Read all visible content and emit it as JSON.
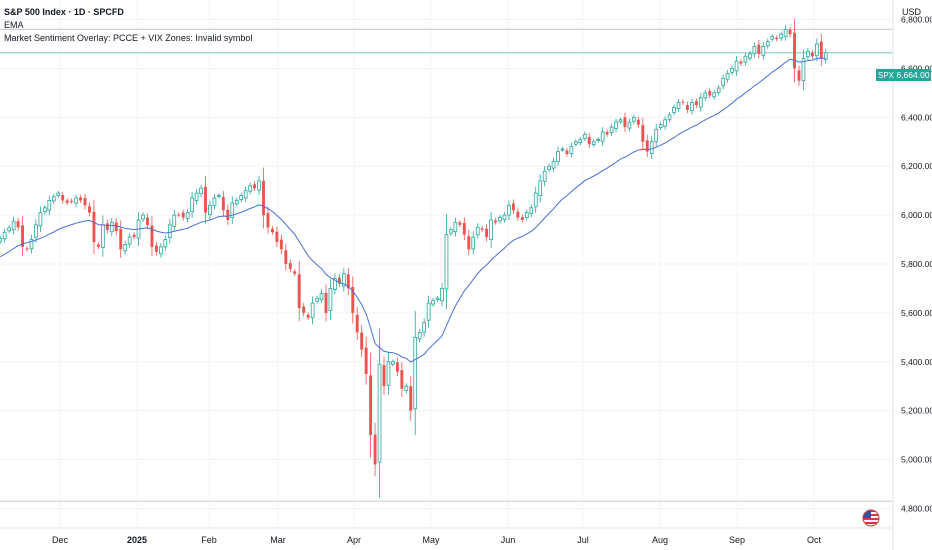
{
  "header": {
    "title": "S&P 500 Index · 1D · SPCFD",
    "indicator_1": "EMA",
    "indicator_2": "Market Sentiment Overlay: PCCE + VIX Zones: Invalid symbol",
    "currency": "USD"
  },
  "price_label": {
    "symbol": "SPX",
    "value": "6,664.00"
  },
  "colors": {
    "up": "#26a69a",
    "down": "#ef5350",
    "ema": "#4a6fd4",
    "grid": "#f0f3fa",
    "axis_text": "#131722",
    "price_label_bg": "#26a69a"
  },
  "chart_data": {
    "type": "candlestick",
    "title": "S&P 500 Index · 1D · SPCFD",
    "y_axis": {
      "label": "USD",
      "range": [
        4720,
        6880
      ],
      "ticks": [
        "6,800.00",
        "6,600.00",
        "6,400.00",
        "6,200.00",
        "6,000.00",
        "5,800.00",
        "5,600.00",
        "5,400.00",
        "5,200.00",
        "5,000.00",
        "4,800.00"
      ]
    },
    "x_axis": {
      "labels": [
        "Dec",
        "2025",
        "Feb",
        "Mar",
        "Apr",
        "May",
        "Jun",
        "Jul",
        "Aug",
        "Sep",
        "Oct"
      ]
    },
    "last_price": 6664.0,
    "horizontal_lines": [
      6760,
      6664,
      4830
    ],
    "series": [
      {
        "name": "SPX",
        "close": [
          5905,
          5930,
          5948,
          5975,
          5950,
          5870,
          5860,
          5900,
          5960,
          6010,
          6030,
          6060,
          6075,
          6090,
          6060,
          6050,
          6055,
          6070,
          6060,
          6040,
          6010,
          5890,
          5870,
          5960,
          5940,
          5970,
          5935,
          5860,
          5880,
          5910,
          5910,
          5980,
          6000,
          5960,
          5870,
          5850,
          5870,
          5900,
          5960,
          6000,
          6000,
          5990,
          6010,
          6070,
          6090,
          6110,
          6010,
          6040,
          6070,
          6080,
          6020,
          5980,
          6050,
          6060,
          6080,
          6100,
          6120,
          6110,
          6140,
          6000,
          5950,
          5930,
          5890,
          5860,
          5800,
          5780,
          5760,
          5620,
          5600,
          5580,
          5640,
          5660,
          5680,
          5600,
          5700,
          5740,
          5720,
          5760,
          5700,
          5600,
          5520,
          5450,
          5350,
          5100,
          4980,
          5390,
          5300,
          5400,
          5400,
          5360,
          5290,
          5300,
          5200,
          5500,
          5520,
          5560,
          5640,
          5650,
          5660,
          5700,
          5920,
          5940,
          5970,
          5960,
          5920,
          5860,
          5910,
          5950,
          5940,
          5910,
          5980,
          5970,
          5990,
          6000,
          6040,
          6020,
          5990,
          5980,
          6010,
          6030,
          6090,
          6140,
          6180,
          6200,
          6220,
          6260,
          6270,
          6250,
          6280,
          6300,
          6310,
          6330,
          6290,
          6300,
          6310,
          6340,
          6330,
          6360,
          6380,
          6390,
          6360,
          6380,
          6400,
          6370,
          6300,
          6260,
          6300,
          6350,
          6370,
          6390,
          6410,
          6440,
          6460,
          6460,
          6430,
          6460,
          6450,
          6480,
          6500,
          6490,
          6500,
          6520,
          6560,
          6580,
          6600,
          6630,
          6620,
          6650,
          6660,
          6690,
          6660,
          6690,
          6710,
          6730,
          6720,
          6740,
          6760,
          6740,
          6600,
          6550,
          6640,
          6670,
          6650,
          6700,
          6640,
          6664
        ]
      },
      {
        "name": "EMA",
        "values": [
          5830,
          5840,
          5851,
          5863,
          5875,
          5882,
          5887,
          5892,
          5898,
          5905,
          5913,
          5922,
          5931,
          5941,
          5949,
          5955,
          5961,
          5967,
          5972,
          5976,
          5978,
          5970,
          5961,
          5960,
          5958,
          5958,
          5957,
          5951,
          5946,
          5943,
          5941,
          5943,
          5946,
          5948,
          5942,
          5935,
          5930,
          5927,
          5929,
          5934,
          5938,
          5942,
          5947,
          5955,
          5963,
          5971,
          5975,
          5980,
          5987,
          5994,
          5996,
          5995,
          6000,
          6005,
          6012,
          6019,
          6027,
          6034,
          6042,
          6037,
          6026,
          6015,
          5999,
          5982,
          5962,
          5941,
          5922,
          5892,
          5862,
          5834,
          5813,
          5796,
          5781,
          5758,
          5744,
          5734,
          5724,
          5718,
          5708,
          5689,
          5664,
          5634,
          5596,
          5538,
          5474,
          5459,
          5443,
          5439,
          5437,
          5431,
          5420,
          5414,
          5399,
          5409,
          5419,
          5431,
          5452,
          5470,
          5487,
          5506,
          5549,
          5589,
          5628,
          5660,
          5690,
          5712,
          5737,
          5761,
          5781,
          5796,
          5816,
          5833,
          5849,
          5865,
          5883,
          5897,
          5906,
          5913,
          5923,
          5934,
          5949,
          5968,
          5988,
          6007,
          6026,
          6047,
          6066,
          6080,
          6096,
          6112,
          6126,
          6141,
          6150,
          6160,
          6170,
          6182,
          6192,
          6204,
          6216,
          6229,
          6237,
          6247,
          6258,
          6266,
          6269,
          6268,
          6271,
          6278,
          6286,
          6295,
          6306,
          6317,
          6330,
          6341,
          6350,
          6360,
          6368,
          6379,
          6390,
          6399,
          6408,
          6418,
          6431,
          6444,
          6458,
          6474,
          6486,
          6500,
          6513,
          6529,
          6541,
          6555,
          6570,
          6585,
          6597,
          6611,
          6626,
          6637,
          6634,
          6626,
          6628,
          6632,
          6634,
          6641,
          6641,
          6643
        ]
      }
    ]
  }
}
